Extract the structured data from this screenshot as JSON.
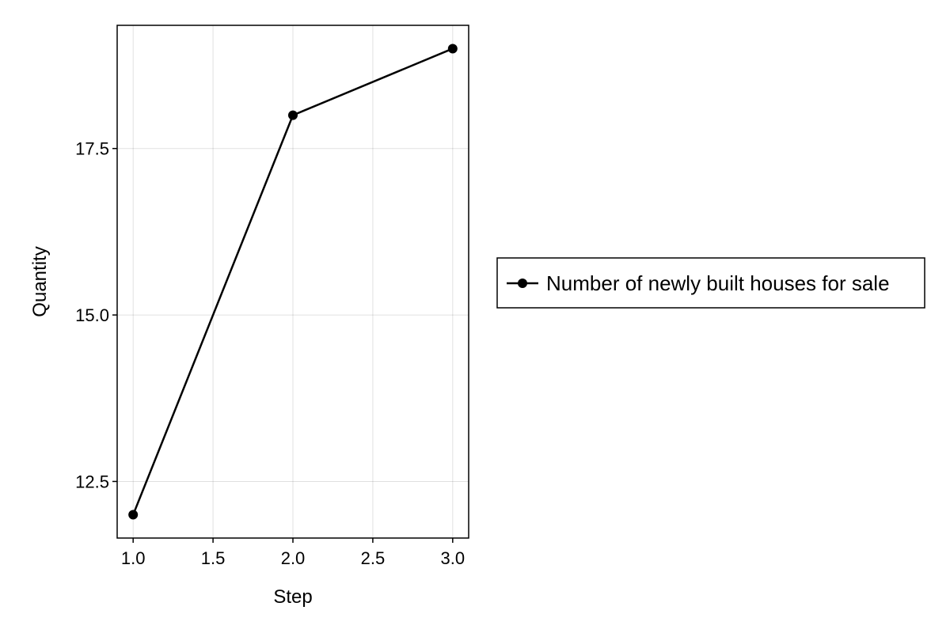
{
  "chart_data": {
    "type": "line",
    "title": "",
    "xlabel": "Step",
    "ylabel": "Quantity",
    "x": [
      1.0,
      2.0,
      3.0
    ],
    "xlim": [
      0.9,
      3.1
    ],
    "ylim": [
      11.65,
      19.35
    ],
    "xticks": [
      1.0,
      1.5,
      2.0,
      2.5,
      3.0
    ],
    "xtick_labels": [
      "1.0",
      "1.5",
      "2.0",
      "2.5",
      "3.0"
    ],
    "yticks": [
      12.5,
      15.0,
      17.5
    ],
    "ytick_labels": [
      "12.5",
      "15.0",
      "17.5"
    ],
    "grid": true,
    "legend_position": "right",
    "series": [
      {
        "name": "Number of newly built houses for sale",
        "values": [
          12,
          18,
          19
        ],
        "color": "#000000",
        "marker": "circle"
      }
    ]
  }
}
